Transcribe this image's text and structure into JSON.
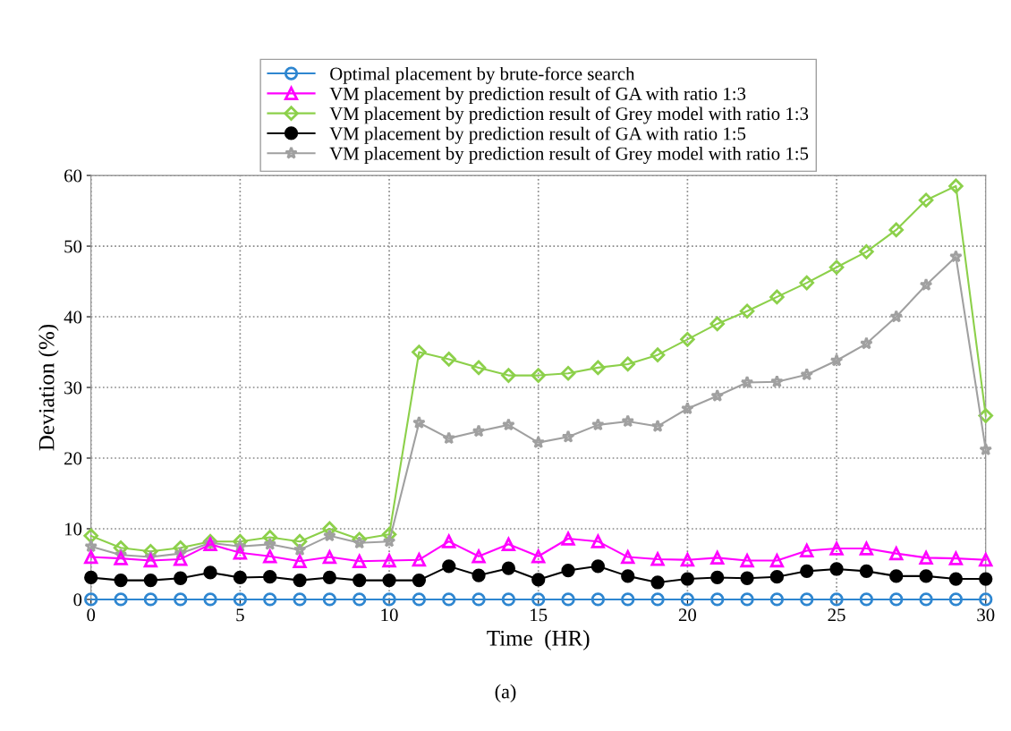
{
  "chart_data": {
    "type": "line",
    "xlabel": "Time  (HR)",
    "ylabel": "Deviation (%)",
    "annotations": [
      "(a)"
    ],
    "x": [
      0,
      1,
      2,
      3,
      4,
      5,
      6,
      7,
      8,
      9,
      10,
      11,
      12,
      13,
      14,
      15,
      16,
      17,
      18,
      19,
      20,
      21,
      22,
      23,
      24,
      25,
      26,
      27,
      28,
      29,
      30
    ],
    "xlim": [
      0,
      30
    ],
    "xticks": [
      0,
      5,
      10,
      15,
      20,
      25,
      30
    ],
    "ylim": [
      0,
      60
    ],
    "yticks": [
      0,
      10,
      20,
      30,
      40,
      50,
      60
    ],
    "grid": true,
    "legend": "top",
    "line_style": "solid",
    "series": [
      {
        "name": "Optimal placement by brute-force search",
        "color": "#2e86d0",
        "marker": "circle",
        "values": [
          0,
          0,
          0,
          0,
          0,
          0,
          0,
          0,
          0,
          0,
          0,
          0,
          0,
          0,
          0,
          0,
          0,
          0,
          0,
          0,
          0,
          0,
          0,
          0,
          0,
          0,
          0,
          0,
          0,
          0,
          0
        ]
      },
      {
        "name": "VM placement by prediction result of GA with ratio 1:3",
        "color": "#ff00ff",
        "marker": "triangle",
        "values": [
          6,
          5.8,
          5.5,
          5.7,
          7.8,
          6.6,
          6.1,
          5.4,
          6,
          5.4,
          5.5,
          5.6,
          8.2,
          6.1,
          7.8,
          6.1,
          8.6,
          8.2,
          6,
          5.7,
          5.6,
          5.9,
          5.5,
          5.5,
          6.9,
          7.2,
          7.2,
          6.5,
          5.9,
          5.8,
          5.6
        ]
      },
      {
        "name": "VM placement by prediction result of Grey model with ratio 1:3",
        "color": "#8cd04a",
        "marker": "diamond",
        "values": [
          9,
          7.3,
          6.8,
          7.3,
          8.2,
          8.2,
          8.8,
          8.2,
          10,
          8.5,
          9.2,
          35,
          34,
          32.8,
          31.7,
          31.7,
          32,
          32.8,
          33.3,
          34.6,
          36.8,
          39,
          40.8,
          42.8,
          44.8,
          47,
          49.2,
          52.3,
          56.5,
          58.5,
          26
        ]
      },
      {
        "name": "VM placement by prediction result of GA with ratio 1:5",
        "color": "#000000",
        "marker": "circle",
        "values": [
          3.1,
          2.7,
          2.7,
          3,
          3.8,
          3.1,
          3.2,
          2.7,
          3.1,
          2.7,
          2.7,
          2.7,
          4.7,
          3.4,
          4.4,
          2.8,
          4.1,
          4.7,
          3.3,
          2.4,
          2.9,
          3.1,
          3,
          3.2,
          4,
          4.3,
          4,
          3.3,
          3.3,
          2.9,
          2.9
        ]
      },
      {
        "name": "VM placement by prediction result of Grey model with ratio 1:5",
        "color": "#a0a0a0",
        "marker": "star",
        "values": [
          7.5,
          6.3,
          6,
          6.5,
          8,
          7.5,
          7.8,
          7,
          9,
          8,
          8.2,
          25,
          22.8,
          23.8,
          24.7,
          22.2,
          23,
          24.7,
          25.2,
          24.5,
          27,
          28.8,
          30.7,
          30.8,
          31.8,
          33.8,
          36.2,
          40,
          44.5,
          48.5,
          21.2
        ]
      }
    ]
  }
}
